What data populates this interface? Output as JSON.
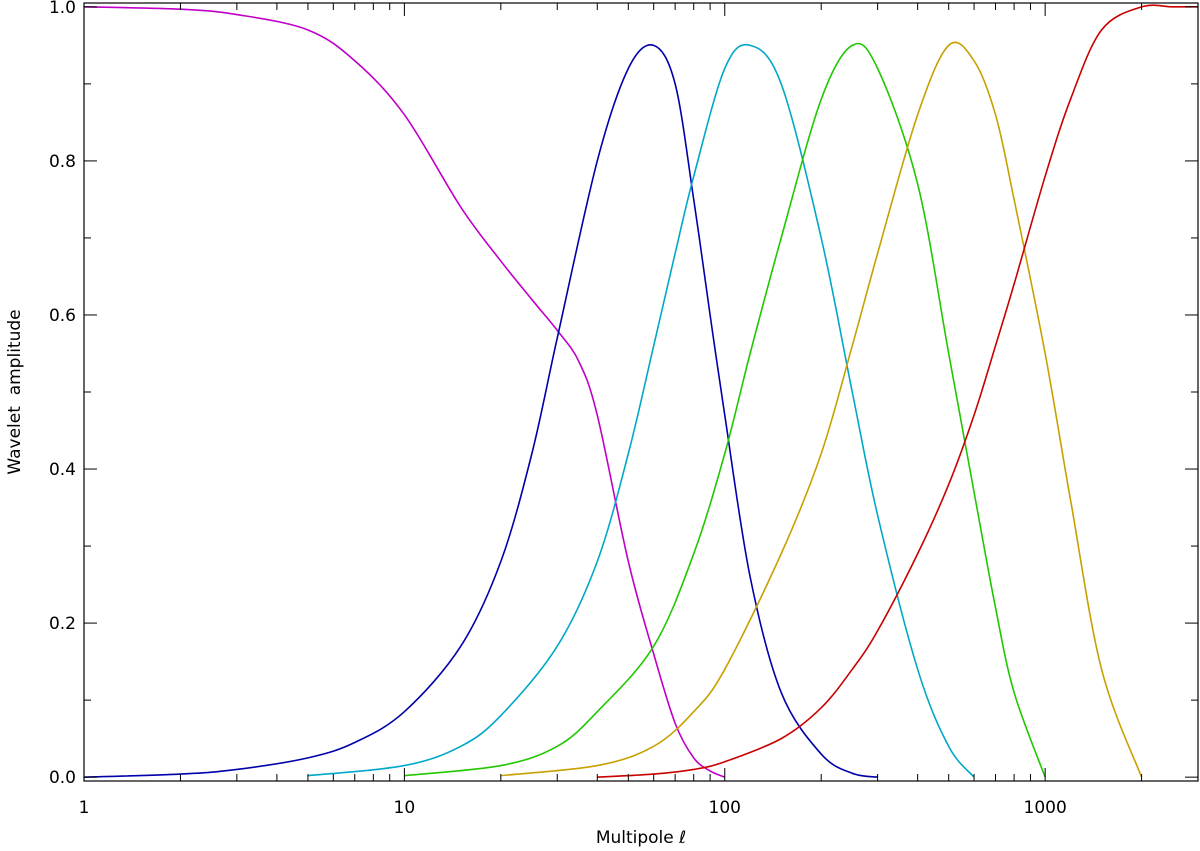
{
  "chart_data": {
    "type": "line",
    "title": "",
    "xlabel": "Multipole ℓ",
    "ylabel": "Wavelet  amplitude",
    "xscale": "log",
    "xlim": [
      1,
      3000
    ],
    "ylim": [
      -0.005,
      1.005
    ],
    "grid": false,
    "legend": "none",
    "x_ticks": [
      {
        "value": 1,
        "label": "1"
      },
      {
        "value": 10,
        "label": "10"
      },
      {
        "value": 100,
        "label": "100"
      },
      {
        "value": 1000,
        "label": "1000"
      }
    ],
    "y_ticks": [
      {
        "value": 0.0,
        "label": "0.0"
      },
      {
        "value": 0.2,
        "label": "0.2"
      },
      {
        "value": 0.4,
        "label": "0.4"
      },
      {
        "value": 0.6,
        "label": "0.6"
      },
      {
        "value": 0.8,
        "label": "0.8"
      },
      {
        "value": 1.0,
        "label": "1.0"
      }
    ],
    "series": [
      {
        "color": "#c000c8",
        "x": [
          1,
          2,
          3,
          5,
          7,
          10,
          15,
          20,
          25,
          30,
          35,
          40,
          50,
          60,
          70,
          80,
          90,
          100
        ],
        "y": [
          1.0,
          0.997,
          0.99,
          0.97,
          0.93,
          0.86,
          0.74,
          0.67,
          0.62,
          0.58,
          0.54,
          0.47,
          0.28,
          0.16,
          0.07,
          0.025,
          0.008,
          0.0
        ]
      },
      {
        "color": "#0000aa",
        "x": [
          1,
          2,
          3,
          5,
          7,
          10,
          15,
          20,
          25,
          30,
          40,
          50,
          60,
          70,
          80,
          90,
          100,
          120,
          150,
          200,
          250,
          300
        ],
        "y": [
          0.0,
          0.004,
          0.01,
          0.025,
          0.045,
          0.085,
          0.17,
          0.28,
          0.42,
          0.57,
          0.8,
          0.92,
          0.95,
          0.9,
          0.75,
          0.6,
          0.47,
          0.26,
          0.11,
          0.03,
          0.005,
          0.0
        ]
      },
      {
        "color": "#00a8c8",
        "x": [
          5,
          10,
          15,
          20,
          30,
          40,
          50,
          60,
          70,
          80,
          100,
          120,
          150,
          200,
          250,
          300,
          400,
          500,
          600
        ],
        "y": [
          0.002,
          0.015,
          0.04,
          0.08,
          0.17,
          0.28,
          0.42,
          0.56,
          0.68,
          0.78,
          0.92,
          0.95,
          0.9,
          0.7,
          0.5,
          0.34,
          0.14,
          0.04,
          0.0
        ]
      },
      {
        "color": "#20c800",
        "x": [
          10,
          20,
          30,
          40,
          60,
          80,
          100,
          120,
          150,
          200,
          250,
          300,
          400,
          500,
          600,
          700,
          800,
          1000
        ],
        "y": [
          0.002,
          0.015,
          0.04,
          0.085,
          0.17,
          0.29,
          0.42,
          0.55,
          0.7,
          0.88,
          0.95,
          0.92,
          0.77,
          0.55,
          0.37,
          0.22,
          0.11,
          0.0
        ]
      },
      {
        "color": "#c8a000",
        "x": [
          20,
          40,
          60,
          80,
          100,
          150,
          200,
          250,
          300,
          400,
          500,
          600,
          700,
          800,
          1000,
          1200,
          1500,
          2000
        ],
        "y": [
          0.002,
          0.015,
          0.04,
          0.085,
          0.14,
          0.29,
          0.42,
          0.56,
          0.68,
          0.86,
          0.95,
          0.93,
          0.86,
          0.75,
          0.55,
          0.36,
          0.14,
          0.0
        ]
      },
      {
        "color": "#c80000",
        "x": [
          40,
          60,
          80,
          100,
          150,
          200,
          250,
          300,
          400,
          500,
          600,
          700,
          800,
          1000,
          1200,
          1500,
          2000,
          2500,
          3000
        ],
        "y": [
          0.0,
          0.004,
          0.01,
          0.02,
          0.05,
          0.09,
          0.14,
          0.19,
          0.29,
          0.38,
          0.47,
          0.56,
          0.64,
          0.78,
          0.88,
          0.97,
          1.0,
          1.0,
          1.0
        ]
      }
    ]
  }
}
